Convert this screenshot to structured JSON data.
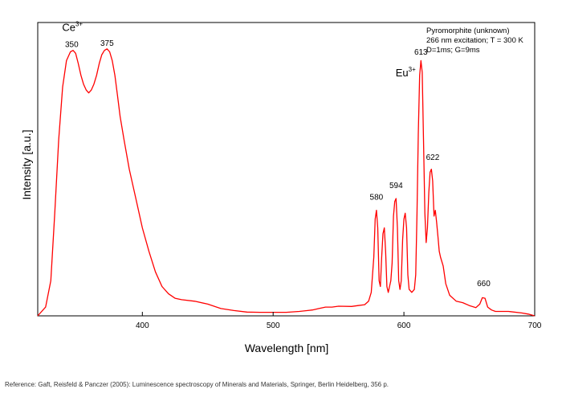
{
  "chart_data": {
    "type": "line",
    "title": "",
    "xlabel": "Wavelength [nm]",
    "ylabel": "Intensity [a.u.]",
    "xlim": [
      320,
      700
    ],
    "ylim": [
      0,
      1.0
    ],
    "x_ticks": [
      "400",
      "500",
      "600",
      "700"
    ],
    "x_tick_values": [
      400,
      500,
      600,
      700
    ],
    "y_ticks": [],
    "grid": false,
    "line_color": "#ff0000",
    "info_lines": [
      "Pyromorphite (unknown)",
      "266 nm excitation; T = 300 K",
      "D=1ms; G=9ms"
    ],
    "annotations": [
      {
        "text": "Ce",
        "sup": "3+",
        "x": 346,
        "y": 0.985
      },
      {
        "text": "Eu",
        "sup": "3+",
        "x": 601,
        "y": 0.83
      },
      {
        "text": "350",
        "x": 346,
        "y": 0.905
      },
      {
        "text": "375",
        "x": 373,
        "y": 0.91
      },
      {
        "text": "613",
        "x": 613,
        "y": 0.88
      },
      {
        "text": "622",
        "x": 622,
        "y": 0.52
      },
      {
        "text": "580",
        "x": 579,
        "y": 0.385
      },
      {
        "text": "594",
        "x": 594,
        "y": 0.425
      },
      {
        "text": "660",
        "x": 661,
        "y": 0.09
      }
    ],
    "series": [
      {
        "x": [
          320,
          326,
          330,
          333,
          336,
          339,
          342,
          345,
          347,
          349,
          351,
          353,
          355,
          357,
          359,
          361,
          363,
          365,
          367,
          369,
          371,
          373,
          375,
          377,
          379,
          381,
          383,
          386,
          390,
          395,
          400,
          405,
          410,
          415,
          420,
          425,
          430,
          440,
          450,
          460,
          470,
          480,
          490,
          500,
          510,
          520,
          530,
          535,
          540,
          545,
          550,
          560,
          565,
          570,
          573,
          575,
          577,
          578,
          579,
          580,
          581,
          582,
          583,
          584,
          585,
          586,
          587,
          588,
          589,
          590,
          591,
          592,
          593,
          594,
          595,
          596,
          597,
          598,
          599,
          600,
          601,
          602,
          603,
          604,
          606,
          608,
          609,
          610,
          611,
          612,
          613,
          614,
          615,
          616,
          617,
          618,
          619,
          620,
          621,
          622,
          623,
          624,
          625,
          626,
          627,
          628,
          630,
          632,
          635,
          640,
          645,
          650,
          655,
          658,
          660,
          662,
          664,
          667,
          670,
          680,
          690,
          695,
          700
        ],
        "y": [
          0.0,
          0.03,
          0.12,
          0.35,
          0.6,
          0.78,
          0.87,
          0.9,
          0.905,
          0.895,
          0.86,
          0.82,
          0.79,
          0.77,
          0.76,
          0.77,
          0.79,
          0.82,
          0.86,
          0.89,
          0.905,
          0.91,
          0.9,
          0.87,
          0.82,
          0.75,
          0.68,
          0.6,
          0.5,
          0.4,
          0.3,
          0.22,
          0.15,
          0.1,
          0.075,
          0.06,
          0.055,
          0.05,
          0.04,
          0.025,
          0.018,
          0.013,
          0.012,
          0.012,
          0.012,
          0.015,
          0.02,
          0.025,
          0.03,
          0.03,
          0.033,
          0.032,
          0.035,
          0.038,
          0.05,
          0.08,
          0.2,
          0.33,
          0.36,
          0.3,
          0.12,
          0.1,
          0.2,
          0.28,
          0.3,
          0.22,
          0.1,
          0.08,
          0.1,
          0.12,
          0.18,
          0.34,
          0.39,
          0.4,
          0.3,
          0.12,
          0.09,
          0.12,
          0.26,
          0.33,
          0.35,
          0.3,
          0.14,
          0.09,
          0.08,
          0.09,
          0.14,
          0.35,
          0.62,
          0.82,
          0.87,
          0.83,
          0.6,
          0.35,
          0.25,
          0.3,
          0.42,
          0.49,
          0.5,
          0.46,
          0.34,
          0.36,
          0.32,
          0.27,
          0.22,
          0.2,
          0.17,
          0.11,
          0.07,
          0.05,
          0.045,
          0.035,
          0.028,
          0.04,
          0.062,
          0.06,
          0.03,
          0.02,
          0.015,
          0.015,
          0.01,
          0.006,
          0.0
        ]
      }
    ]
  },
  "reference_text": "Reference: Gaft, Reisfeld & Panczer (2005): Luminescence spectroscopy of Minerals and Materials, Springer, Berlin Heidelberg, 356 p."
}
